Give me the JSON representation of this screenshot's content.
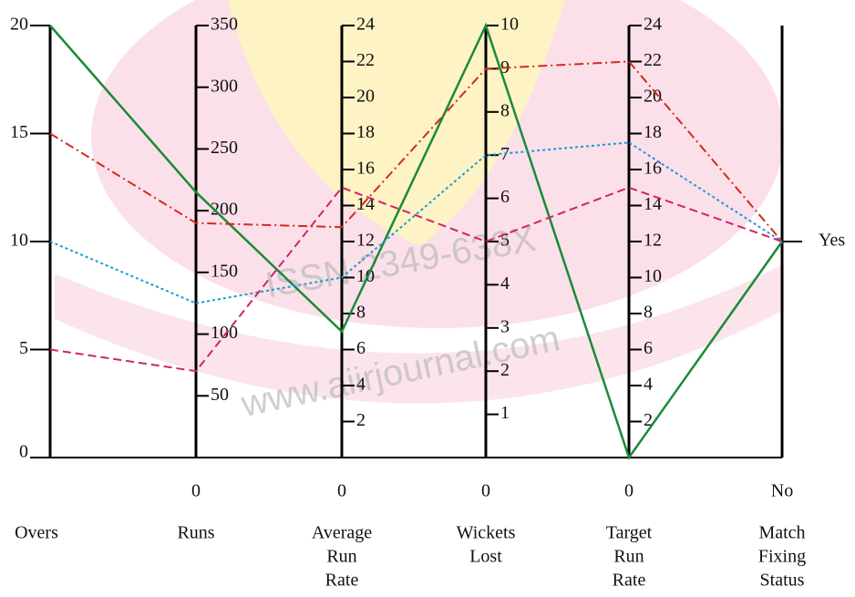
{
  "chart_data": {
    "type": "parallel",
    "axes": [
      {
        "label": [
          "Overs"
        ],
        "lim": [
          0,
          20
        ],
        "ticks": [
          0,
          5,
          10,
          15,
          20
        ]
      },
      {
        "label": [
          "Runs"
        ],
        "lim": [
          0,
          350
        ],
        "ticks": [
          0,
          50,
          100,
          150,
          200,
          250,
          300,
          350
        ]
      },
      {
        "label": [
          "Average",
          "Run",
          "Rate"
        ],
        "lim": [
          0,
          24
        ],
        "ticks": [
          0,
          2,
          4,
          6,
          8,
          10,
          12,
          14,
          16,
          18,
          20,
          22,
          24
        ]
      },
      {
        "label": [
          "Wickets",
          "Lost"
        ],
        "lim": [
          0,
          10
        ],
        "ticks": [
          0,
          1,
          2,
          3,
          4,
          5,
          6,
          7,
          8,
          9,
          10
        ]
      },
      {
        "label": [
          "Target",
          "Run",
          "Rate"
        ],
        "lim": [
          0,
          24
        ],
        "ticks": [
          0,
          2,
          4,
          6,
          8,
          10,
          12,
          14,
          16,
          18,
          20,
          22,
          24
        ]
      },
      {
        "label": [
          "Match",
          "Fixing",
          "Status"
        ],
        "lim": [
          0,
          2
        ],
        "ticks": [
          {
            "value": 0,
            "label": "No"
          },
          {
            "value": 1,
            "label": "Yes"
          }
        ]
      }
    ],
    "series": [
      {
        "color": "#1a8a3a",
        "dash": "solid",
        "values": [
          20,
          215,
          7,
          10,
          0,
          1
        ]
      },
      {
        "color": "#d42a1a",
        "dash": "dashdot",
        "values": [
          15,
          190,
          12.8,
          9,
          22,
          1
        ]
      },
      {
        "color": "#1a9ad4",
        "dash": "dotted",
        "values": [
          10,
          125,
          10,
          7,
          17.5,
          1
        ]
      },
      {
        "color": "#d4206e",
        "dash": "dashed",
        "values": [
          5,
          70,
          15,
          5,
          15,
          1
        ]
      }
    ],
    "watermark": [
      "ISSN 2349-638X",
      "www.aiirjournal.com"
    ]
  }
}
